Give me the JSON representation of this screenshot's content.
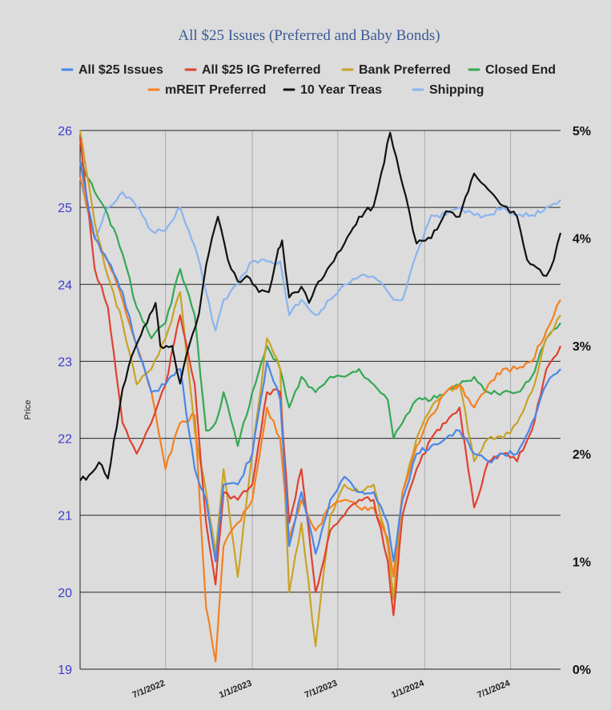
{
  "chart_data": {
    "type": "line",
    "title": "All $25 Issues (Preferred and Baby Bonds)",
    "ylabel": "Price",
    "ylim": [
      19,
      26
    ],
    "y2lim": [
      0,
      5
    ],
    "yticks": [
      "19",
      "20",
      "21",
      "22",
      "23",
      "24",
      "25",
      "26"
    ],
    "y2ticks": [
      "0%",
      "1%",
      "2%",
      "3%",
      "4%",
      "5%"
    ],
    "xlim": [
      "2022-01-01",
      "2024-10-15"
    ],
    "xticks": [
      {
        "date": "2022-07-01",
        "label": "7/1/2022"
      },
      {
        "date": "2023-01-01",
        "label": "1/1/2023"
      },
      {
        "date": "2023-07-01",
        "label": "7/1/2023"
      },
      {
        "date": "2024-01-01",
        "label": "1/1/2024"
      },
      {
        "date": "2024-07-01",
        "label": "7/1/2024"
      }
    ],
    "grid": true,
    "legend_position": "top",
    "series": [
      {
        "name": "All $25 Issues",
        "color": "#4a86e8",
        "axis": "left",
        "points": [
          [
            "2022-01-01",
            25.6
          ],
          [
            "2022-02-01",
            24.6
          ],
          [
            "2022-03-01",
            24.3
          ],
          [
            "2022-04-01",
            23.9
          ],
          [
            "2022-05-01",
            23.2
          ],
          [
            "2022-06-01",
            22.6
          ],
          [
            "2022-07-01",
            22.7
          ],
          [
            "2022-08-01",
            22.9
          ],
          [
            "2022-09-01",
            21.6
          ],
          [
            "2022-09-25",
            21.2
          ],
          [
            "2022-10-15",
            20.4
          ],
          [
            "2022-11-01",
            21.4
          ],
          [
            "2022-12-01",
            21.4
          ],
          [
            "2023-01-01",
            21.8
          ],
          [
            "2023-02-01",
            23.0
          ],
          [
            "2023-03-01",
            22.5
          ],
          [
            "2023-03-20",
            20.6
          ],
          [
            "2023-04-15",
            21.3
          ],
          [
            "2023-05-15",
            20.5
          ],
          [
            "2023-06-15",
            21.2
          ],
          [
            "2023-07-15",
            21.5
          ],
          [
            "2023-08-15",
            21.3
          ],
          [
            "2023-09-15",
            21.3
          ],
          [
            "2023-10-15",
            20.9
          ],
          [
            "2023-10-27",
            20.4
          ],
          [
            "2023-11-15",
            21.2
          ],
          [
            "2023-12-15",
            21.8
          ],
          [
            "2024-01-15",
            21.9
          ],
          [
            "2024-02-15",
            22.0
          ],
          [
            "2024-03-15",
            22.1
          ],
          [
            "2024-04-15",
            21.8
          ],
          [
            "2024-05-15",
            21.7
          ],
          [
            "2024-06-15",
            21.8
          ],
          [
            "2024-07-15",
            21.8
          ],
          [
            "2024-08-15",
            22.2
          ],
          [
            "2024-09-15",
            22.7
          ],
          [
            "2024-10-15",
            22.9
          ]
        ]
      },
      {
        "name": "All $25 IG Preferred",
        "color": "#e0412f",
        "axis": "left",
        "points": [
          [
            "2022-01-01",
            25.9
          ],
          [
            "2022-02-01",
            24.2
          ],
          [
            "2022-03-01",
            23.7
          ],
          [
            "2022-04-01",
            22.2
          ],
          [
            "2022-05-01",
            21.8
          ],
          [
            "2022-06-01",
            22.2
          ],
          [
            "2022-07-01",
            22.7
          ],
          [
            "2022-08-01",
            23.6
          ],
          [
            "2022-09-01",
            22.7
          ],
          [
            "2022-09-25",
            20.9
          ],
          [
            "2022-10-15",
            20.1
          ],
          [
            "2022-11-01",
            21.3
          ],
          [
            "2022-12-01",
            21.2
          ],
          [
            "2023-01-01",
            21.4
          ],
          [
            "2023-02-01",
            22.6
          ],
          [
            "2023-03-01",
            22.6
          ],
          [
            "2023-03-20",
            20.9
          ],
          [
            "2023-04-15",
            21.6
          ],
          [
            "2023-05-15",
            20.0
          ],
          [
            "2023-06-15",
            20.8
          ],
          [
            "2023-07-15",
            21.0
          ],
          [
            "2023-08-15",
            21.2
          ],
          [
            "2023-09-15",
            21.2
          ],
          [
            "2023-10-15",
            20.4
          ],
          [
            "2023-10-27",
            19.7
          ],
          [
            "2023-11-15",
            21.0
          ],
          [
            "2023-12-15",
            21.6
          ],
          [
            "2024-01-15",
            22.0
          ],
          [
            "2024-02-15",
            22.2
          ],
          [
            "2024-03-15",
            22.4
          ],
          [
            "2024-04-15",
            21.1
          ],
          [
            "2024-05-15",
            21.7
          ],
          [
            "2024-06-15",
            21.8
          ],
          [
            "2024-07-15",
            21.7
          ],
          [
            "2024-08-15",
            22.1
          ],
          [
            "2024-09-15",
            22.9
          ],
          [
            "2024-10-15",
            23.2
          ]
        ]
      },
      {
        "name": "Bank Preferred",
        "color": "#c9a227",
        "axis": "left",
        "points": [
          [
            "2022-01-01",
            26.0
          ],
          [
            "2022-02-01",
            24.8
          ],
          [
            "2022-03-01",
            24.1
          ],
          [
            "2022-04-01",
            23.5
          ],
          [
            "2022-05-01",
            22.7
          ],
          [
            "2022-06-01",
            22.9
          ],
          [
            "2022-07-01",
            23.3
          ],
          [
            "2022-08-01",
            23.9
          ],
          [
            "2022-09-01",
            22.1
          ],
          [
            "2022-09-25",
            21.3
          ],
          [
            "2022-10-15",
            20.5
          ],
          [
            "2022-11-01",
            21.6
          ],
          [
            "2022-12-01",
            20.2
          ],
          [
            "2023-01-01",
            21.8
          ],
          [
            "2023-02-01",
            23.3
          ],
          [
            "2023-03-01",
            22.9
          ],
          [
            "2023-03-20",
            20.0
          ],
          [
            "2023-04-15",
            20.9
          ],
          [
            "2023-05-15",
            19.3
          ],
          [
            "2023-06-15",
            21.0
          ],
          [
            "2023-07-15",
            21.4
          ],
          [
            "2023-08-15",
            21.3
          ],
          [
            "2023-09-15",
            21.4
          ],
          [
            "2023-10-15",
            20.6
          ],
          [
            "2023-10-27",
            19.9
          ],
          [
            "2023-11-15",
            21.3
          ],
          [
            "2023-12-15",
            22.0
          ],
          [
            "2024-01-15",
            22.4
          ],
          [
            "2024-02-15",
            22.6
          ],
          [
            "2024-03-15",
            22.7
          ],
          [
            "2024-04-15",
            21.7
          ],
          [
            "2024-05-15",
            22.0
          ],
          [
            "2024-06-15",
            22.0
          ],
          [
            "2024-07-15",
            22.2
          ],
          [
            "2024-08-15",
            22.6
          ],
          [
            "2024-09-15",
            23.3
          ],
          [
            "2024-10-15",
            23.6
          ]
        ]
      },
      {
        "name": "Closed End",
        "color": "#34a853",
        "axis": "left",
        "points": [
          [
            "2022-01-01",
            25.6
          ],
          [
            "2022-02-01",
            25.2
          ],
          [
            "2022-03-01",
            24.9
          ],
          [
            "2022-04-01",
            24.4
          ],
          [
            "2022-05-01",
            23.7
          ],
          [
            "2022-06-01",
            23.3
          ],
          [
            "2022-07-01",
            23.5
          ],
          [
            "2022-08-01",
            24.2
          ],
          [
            "2022-09-01",
            23.6
          ],
          [
            "2022-09-25",
            22.1
          ],
          [
            "2022-10-15",
            22.2
          ],
          [
            "2022-11-01",
            22.6
          ],
          [
            "2022-12-01",
            21.9
          ],
          [
            "2023-01-01",
            22.6
          ],
          [
            "2023-02-01",
            23.2
          ],
          [
            "2023-03-01",
            22.9
          ],
          [
            "2023-03-20",
            22.4
          ],
          [
            "2023-04-15",
            22.8
          ],
          [
            "2023-05-15",
            22.6
          ],
          [
            "2023-06-15",
            22.8
          ],
          [
            "2023-07-15",
            22.8
          ],
          [
            "2023-08-15",
            22.9
          ],
          [
            "2023-09-15",
            22.7
          ],
          [
            "2023-10-15",
            22.5
          ],
          [
            "2023-10-27",
            22.0
          ],
          [
            "2023-11-15",
            22.2
          ],
          [
            "2023-12-15",
            22.5
          ],
          [
            "2024-01-15",
            22.5
          ],
          [
            "2024-02-15",
            22.6
          ],
          [
            "2024-03-15",
            22.7
          ],
          [
            "2024-04-15",
            22.8
          ],
          [
            "2024-05-15",
            22.6
          ],
          [
            "2024-06-15",
            22.6
          ],
          [
            "2024-07-15",
            22.6
          ],
          [
            "2024-08-15",
            22.8
          ],
          [
            "2024-09-15",
            23.3
          ],
          [
            "2024-10-15",
            23.5
          ]
        ]
      },
      {
        "name": "mREIT Preferred",
        "color": "#f4801f",
        "axis": "left",
        "points": [
          [
            "2022-01-01",
            25.4
          ],
          [
            "2022-02-01",
            24.6
          ],
          [
            "2022-03-01",
            24.3
          ],
          [
            "2022-04-01",
            23.8
          ],
          [
            "2022-05-01",
            23.2
          ],
          [
            "2022-06-01",
            22.6
          ],
          [
            "2022-07-01",
            21.6
          ],
          [
            "2022-08-01",
            22.2
          ],
          [
            "2022-09-01",
            22.3
          ],
          [
            "2022-09-25",
            19.8
          ],
          [
            "2022-10-15",
            19.1
          ],
          [
            "2022-11-01",
            20.6
          ],
          [
            "2022-12-01",
            20.9
          ],
          [
            "2023-01-01",
            21.2
          ],
          [
            "2023-02-01",
            22.4
          ],
          [
            "2023-03-01",
            22.0
          ],
          [
            "2023-03-20",
            20.7
          ],
          [
            "2023-04-15",
            21.2
          ],
          [
            "2023-05-15",
            20.8
          ],
          [
            "2023-06-15",
            21.1
          ],
          [
            "2023-07-15",
            21.2
          ],
          [
            "2023-08-15",
            21.1
          ],
          [
            "2023-09-15",
            21.1
          ],
          [
            "2023-10-15",
            20.7
          ],
          [
            "2023-10-27",
            20.2
          ],
          [
            "2023-11-15",
            21.3
          ],
          [
            "2023-12-15",
            21.9
          ],
          [
            "2024-01-15",
            22.3
          ],
          [
            "2024-02-15",
            22.6
          ],
          [
            "2024-03-15",
            22.7
          ],
          [
            "2024-04-15",
            22.4
          ],
          [
            "2024-05-15",
            22.7
          ],
          [
            "2024-06-15",
            22.9
          ],
          [
            "2024-07-15",
            22.9
          ],
          [
            "2024-08-15",
            23.0
          ],
          [
            "2024-09-15",
            23.4
          ],
          [
            "2024-10-15",
            23.8
          ]
        ]
      },
      {
        "name": "10 Year Treas",
        "color": "#111111",
        "axis": "right",
        "points": [
          [
            "2022-01-01",
            1.75
          ],
          [
            "2022-01-20",
            1.8
          ],
          [
            "2022-02-10",
            1.92
          ],
          [
            "2022-03-01",
            1.77
          ],
          [
            "2022-04-01",
            2.6
          ],
          [
            "2022-04-20",
            2.9
          ],
          [
            "2022-05-10",
            3.1
          ],
          [
            "2022-06-10",
            3.4
          ],
          [
            "2022-06-20",
            3.0
          ],
          [
            "2022-07-15",
            3.0
          ],
          [
            "2022-08-01",
            2.65
          ],
          [
            "2022-08-20",
            3.0
          ],
          [
            "2022-09-10",
            3.3
          ],
          [
            "2022-09-25",
            3.75
          ],
          [
            "2022-10-20",
            4.2
          ],
          [
            "2022-11-10",
            3.8
          ],
          [
            "2022-12-01",
            3.6
          ],
          [
            "2022-12-20",
            3.65
          ],
          [
            "2023-01-15",
            3.5
          ],
          [
            "2023-02-05",
            3.5
          ],
          [
            "2023-02-25",
            3.9
          ],
          [
            "2023-03-05",
            3.98
          ],
          [
            "2023-03-20",
            3.45
          ],
          [
            "2023-04-15",
            3.55
          ],
          [
            "2023-05-01",
            3.4
          ],
          [
            "2023-05-15",
            3.55
          ],
          [
            "2023-06-15",
            3.75
          ],
          [
            "2023-07-15",
            3.95
          ],
          [
            "2023-08-15",
            4.2
          ],
          [
            "2023-09-15",
            4.3
          ],
          [
            "2023-10-01",
            4.6
          ],
          [
            "2023-10-20",
            4.98
          ],
          [
            "2023-11-15",
            4.5
          ],
          [
            "2023-12-15",
            3.95
          ],
          [
            "2024-01-15",
            4.0
          ],
          [
            "2024-02-15",
            4.25
          ],
          [
            "2024-03-15",
            4.2
          ],
          [
            "2024-04-15",
            4.6
          ],
          [
            "2024-05-15",
            4.45
          ],
          [
            "2024-06-15",
            4.3
          ],
          [
            "2024-07-15",
            4.2
          ],
          [
            "2024-08-05",
            3.8
          ],
          [
            "2024-09-15",
            3.65
          ],
          [
            "2024-10-01",
            3.8
          ],
          [
            "2024-10-15",
            4.05
          ]
        ]
      },
      {
        "name": "Shipping",
        "color": "#8ab4f0",
        "axis": "left",
        "points": [
          [
            "2022-01-01",
            25.4
          ],
          [
            "2022-02-01",
            24.6
          ],
          [
            "2022-03-01",
            25.0
          ],
          [
            "2022-04-01",
            25.2
          ],
          [
            "2022-05-01",
            25.0
          ],
          [
            "2022-06-01",
            24.7
          ],
          [
            "2022-07-01",
            24.7
          ],
          [
            "2022-08-01",
            25.0
          ],
          [
            "2022-09-01",
            24.5
          ],
          [
            "2022-09-25",
            23.9
          ],
          [
            "2022-10-15",
            23.4
          ],
          [
            "2022-11-01",
            23.8
          ],
          [
            "2022-12-01",
            24.0
          ],
          [
            "2023-01-01",
            24.3
          ],
          [
            "2023-02-01",
            24.3
          ],
          [
            "2023-03-01",
            24.3
          ],
          [
            "2023-03-20",
            23.6
          ],
          [
            "2023-04-15",
            23.8
          ],
          [
            "2023-05-15",
            23.6
          ],
          [
            "2023-06-15",
            23.8
          ],
          [
            "2023-07-15",
            24.0
          ],
          [
            "2023-08-15",
            24.1
          ],
          [
            "2023-09-15",
            24.1
          ],
          [
            "2023-10-15",
            23.9
          ],
          [
            "2023-10-27",
            23.8
          ],
          [
            "2023-11-15",
            23.8
          ],
          [
            "2023-12-15",
            24.4
          ],
          [
            "2024-01-15",
            24.9
          ],
          [
            "2024-02-15",
            24.9
          ],
          [
            "2024-03-15",
            25.0
          ],
          [
            "2024-04-15",
            24.9
          ],
          [
            "2024-05-15",
            24.9
          ],
          [
            "2024-06-15",
            25.0
          ],
          [
            "2024-07-15",
            24.9
          ],
          [
            "2024-08-15",
            24.9
          ],
          [
            "2024-09-15",
            25.0
          ],
          [
            "2024-10-15",
            25.1
          ]
        ]
      }
    ]
  }
}
